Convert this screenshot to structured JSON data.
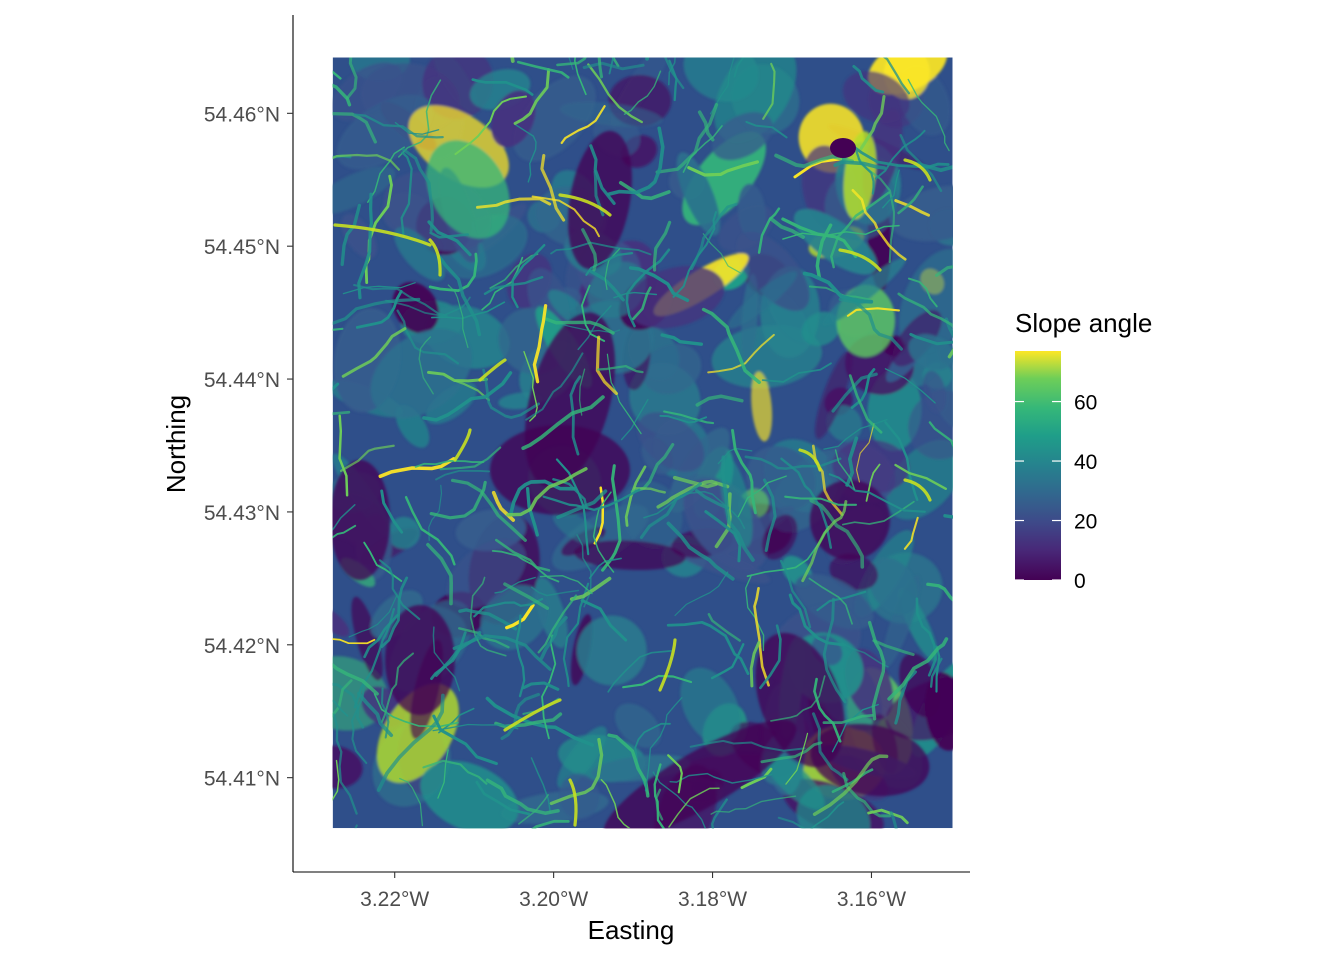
{
  "chart_data": {
    "type": "heatmap",
    "title": "",
    "xlabel": "Easting",
    "ylabel": "Northing",
    "x_ticks": [
      {
        "value": -3.22,
        "label": "3.22°W"
      },
      {
        "value": -3.2,
        "label": "3.20°W"
      },
      {
        "value": -3.18,
        "label": "3.18°W"
      },
      {
        "value": -3.16,
        "label": "3.16°W"
      }
    ],
    "y_ticks": [
      {
        "value": 54.41,
        "label": "54.41°N"
      },
      {
        "value": 54.42,
        "label": "54.42°N"
      },
      {
        "value": 54.43,
        "label": "54.43°N"
      },
      {
        "value": 54.44,
        "label": "54.44°N"
      },
      {
        "value": 54.45,
        "label": "54.45°N"
      },
      {
        "value": 54.46,
        "label": "54.46°N"
      }
    ],
    "xlim": [
      -3.2328,
      -3.1476
    ],
    "ylim": [
      54.4029,
      54.4674
    ],
    "raster_extent": {
      "x": [
        -3.2278,
        -3.1498
      ],
      "y": [
        54.4062,
        54.4642
      ]
    },
    "fill_scale": "viridis",
    "legend": {
      "title": "Slope angle",
      "position": "right",
      "range": [
        0,
        77
      ],
      "breaks": [
        {
          "value": 0,
          "label": "0"
        },
        {
          "value": 20,
          "label": "20"
        },
        {
          "value": 40,
          "label": "40"
        },
        {
          "value": 60,
          "label": "60"
        }
      ]
    },
    "grid": false,
    "colors": {
      "viridis_low": "#440154",
      "viridis_mid": "#21908c",
      "viridis_high": "#fde725",
      "axis": "#000000",
      "tick_text": "#4d4d4d",
      "label_text": "#000000"
    }
  }
}
